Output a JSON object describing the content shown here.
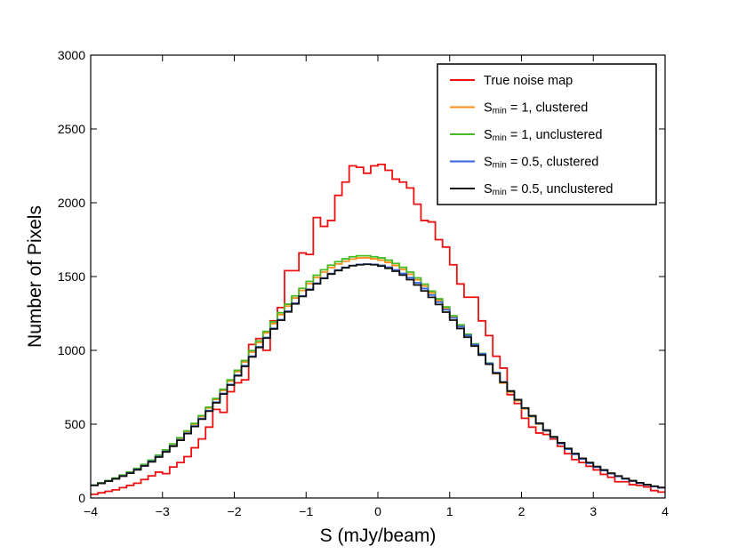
{
  "chart_data": {
    "type": "line",
    "step": true,
    "title": "",
    "xlabel": "S (mJy/beam)",
    "ylabel": "Number of Pixels",
    "xlim": [
      -4,
      4
    ],
    "ylim": [
      0,
      3000
    ],
    "xticks": [
      -4,
      -3,
      -2,
      -1,
      0,
      1,
      2,
      3,
      4
    ],
    "xtick_labels": [
      "−4",
      "−3",
      "−2",
      "−1",
      "0",
      "1",
      "2",
      "3",
      "4"
    ],
    "yticks": [
      0,
      500,
      1000,
      1500,
      2000,
      2500,
      3000
    ],
    "ytick_labels": [
      "0",
      "500",
      "1000",
      "1500",
      "2000",
      "2500",
      "3000"
    ],
    "legend_position": "top-right",
    "x": [
      -4.0,
      -3.9,
      -3.8,
      -3.7,
      -3.6,
      -3.5,
      -3.4,
      -3.3,
      -3.2,
      -3.1,
      -3.0,
      -2.9,
      -2.8,
      -2.7,
      -2.6,
      -2.5,
      -2.4,
      -2.3,
      -2.2,
      -2.1,
      -2.0,
      -1.9,
      -1.8,
      -1.7,
      -1.6,
      -1.5,
      -1.4,
      -1.3,
      -1.2,
      -1.1,
      -1.0,
      -0.9,
      -0.8,
      -0.7,
      -0.6,
      -0.5,
      -0.4,
      -0.3,
      -0.2,
      -0.1,
      0.0,
      0.1,
      0.2,
      0.3,
      0.4,
      0.5,
      0.6,
      0.7,
      0.8,
      0.9,
      1.0,
      1.1,
      1.2,
      1.3,
      1.4,
      1.5,
      1.6,
      1.7,
      1.8,
      1.9,
      2.0,
      2.1,
      2.2,
      2.3,
      2.4,
      2.5,
      2.6,
      2.7,
      2.8,
      2.9,
      3.0,
      3.1,
      3.2,
      3.3,
      3.4,
      3.5,
      3.6,
      3.7,
      3.8,
      3.9
    ],
    "series": [
      {
        "name": "True noise map",
        "color": "#ee1111",
        "values": [
          25,
          35,
          45,
          55,
          70,
          85,
          100,
          125,
          150,
          175,
          165,
          210,
          240,
          280,
          340,
          400,
          480,
          600,
          580,
          720,
          780,
          800,
          1040,
          1080,
          1000,
          1200,
          1290,
          1540,
          1540,
          1660,
          1650,
          1900,
          1840,
          1880,
          2050,
          2140,
          2250,
          2240,
          2200,
          2250,
          2260,
          2220,
          2160,
          2140,
          2100,
          1990,
          1880,
          1870,
          1750,
          1700,
          1580,
          1450,
          1360,
          1360,
          1200,
          1100,
          960,
          880,
          700,
          640,
          540,
          480,
          440,
          430,
          400,
          350,
          300,
          260,
          240,
          215,
          190,
          160,
          140,
          110,
          110,
          90,
          85,
          75,
          50,
          40
        ]
      },
      {
        "name": "S_min = 1, clustered",
        "color": "#ff8c1a",
        "values": [
          87,
          102,
          117,
          134,
          153,
          174,
          198,
          225,
          255,
          287,
          323,
          362,
          404,
          451,
          500,
          553,
          609,
          668,
          729,
          792,
          856,
          922,
          988,
          1053,
          1118,
          1181,
          1242,
          1300,
          1355,
          1406,
          1452,
          1494,
          1530,
          1561,
          1585,
          1604,
          1618,
          1626,
          1627,
          1620,
          1611,
          1596,
          1575,
          1548,
          1516,
          1478,
          1436,
          1389,
          1338,
          1283,
          1224,
          1163,
          1100,
          1036,
          971,
          906,
          842,
          779,
          718,
          659,
          603,
          550,
          500,
          453,
          409,
          368,
          330,
          296,
          265,
          236,
          210,
          187,
          166,
          147,
          130,
          115,
          101,
          89,
          79,
          70
        ]
      },
      {
        "name": "S_min = 1, unclustered",
        "color": "#44bb22",
        "values": [
          88,
          103,
          118,
          135,
          155,
          176,
          200,
          227,
          257,
          290,
          326,
          366,
          408,
          455,
          505,
          558,
          615,
          674,
          736,
          800,
          865,
          931,
          998,
          1064,
          1129,
          1193,
          1255,
          1313,
          1369,
          1420,
          1467,
          1509,
          1546,
          1577,
          1601,
          1620,
          1634,
          1641,
          1641,
          1634,
          1626,
          1611,
          1589,
          1562,
          1530,
          1491,
          1449,
          1401,
          1349,
          1294,
          1235,
          1173,
          1109,
          1044,
          979,
          914,
          849,
          785,
          724,
          665,
          608,
          554,
          504,
          456,
          412,
          371,
          333,
          298,
          267,
          238,
          212,
          189,
          167,
          148,
          131,
          116,
          102,
          90,
          80,
          70
        ]
      },
      {
        "name": "S_min = 0.5, clustered",
        "color": "#3366dd",
        "values": [
          86,
          100,
          115,
          131,
          150,
          170,
          193,
          219,
          248,
          280,
          315,
          353,
          394,
          439,
          487,
          538,
          592,
          649,
          708,
          769,
          832,
          896,
          960,
          1024,
          1087,
          1149,
          1208,
          1265,
          1319,
          1369,
          1414,
          1455,
          1490,
          1520,
          1544,
          1562,
          1575,
          1582,
          1584,
          1582,
          1576,
          1563,
          1545,
          1521,
          1492,
          1458,
          1419,
          1375,
          1327,
          1275,
          1220,
          1161,
          1101,
          1039,
          976,
          912,
          849,
          786,
          725,
          666,
          609,
          555,
          504,
          456,
          411,
          369,
          331,
          296,
          264,
          235,
          209,
          186,
          165,
          146,
          129,
          114,
          100,
          88,
          78,
          69
        ]
      },
      {
        "name": "S_min = 0.5, unclustered",
        "color": "#111111",
        "values": [
          85,
          99,
          114,
          130,
          148,
          168,
          191,
          217,
          245,
          277,
          312,
          350,
          391,
          436,
          484,
          534,
          588,
          645,
          704,
          765,
          828,
          892,
          956,
          1020,
          1083,
          1145,
          1204,
          1261,
          1315,
          1365,
          1410,
          1451,
          1487,
          1517,
          1541,
          1560,
          1573,
          1580,
          1583,
          1580,
          1571,
          1556,
          1536,
          1510,
          1479,
          1443,
          1403,
          1359,
          1311,
          1259,
          1205,
          1148,
          1089,
          1029,
          968,
          906,
          845,
          784,
          724,
          666,
          610,
          557,
          507,
          460,
          415,
          374,
          336,
          301,
          269,
          240,
          213,
          190,
          168,
          149,
          132,
          117,
          103,
          91,
          80,
          71
        ]
      }
    ]
  },
  "legend": [
    {
      "text": "True noise map",
      "color": "#ee1111"
    },
    {
      "prefix": "S",
      "sub": "min",
      "rest": " = 1, clustered",
      "color": "#ff8c1a"
    },
    {
      "prefix": "S",
      "sub": "min",
      "rest": " = 1, unclustered",
      "color": "#44bb22"
    },
    {
      "prefix": "S",
      "sub": "min",
      "rest": " = 0.5, clustered",
      "color": "#3366dd"
    },
    {
      "prefix": "S",
      "sub": "min",
      "rest": " = 0.5, unclustered",
      "color": "#111111"
    }
  ]
}
